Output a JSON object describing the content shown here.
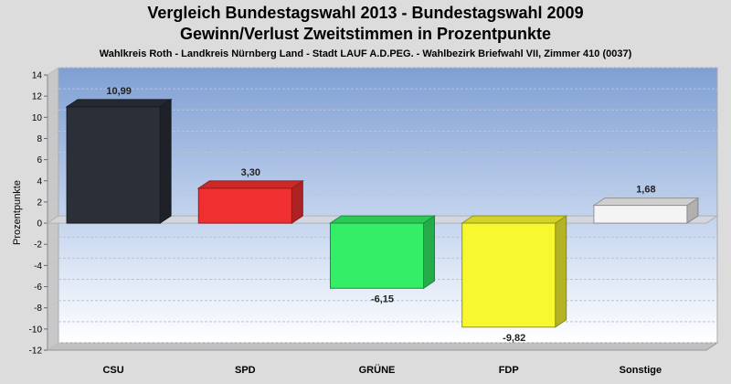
{
  "title": "Vergleich Bundestagswahl 2013  - Bundestagswahl 2009",
  "subtitle": "Gewinn/Verlust Zweitstimmen in Prozentpunkte",
  "subtitle2": "Wahlkreis Roth - Landkreis Nürnberg Land - Stadt LAUF A.D.PEG. - Wahlbezirk Briefwahl VII, Zimmer 410 (0037)",
  "chart_data": {
    "type": "bar",
    "title": "Vergleich Bundestagswahl 2013  - Bundestagswahl 2009",
    "ylabel": "Prozentpunkte",
    "xlabel": "",
    "ylim": [
      -12,
      14
    ],
    "yticks": [
      "14",
      "12",
      "10",
      "8",
      "6",
      "4",
      "2",
      "0",
      "-2",
      "-4",
      "-6",
      "-8",
      "-10",
      "-12"
    ],
    "categories": [
      "CSU",
      "SPD",
      "GRÜNE",
      "FDP",
      "Sonstige"
    ],
    "values": [
      10.99,
      3.3,
      -6.15,
      -9.82,
      1.68
    ],
    "value_labels": [
      "10,99",
      "3,30",
      "-6,15",
      "-9,82",
      "1,68"
    ],
    "colors": [
      "#2a2f38",
      "#f03030",
      "#33ee66",
      "#f8f830",
      "#f4f4f4"
    ],
    "grid": true
  }
}
